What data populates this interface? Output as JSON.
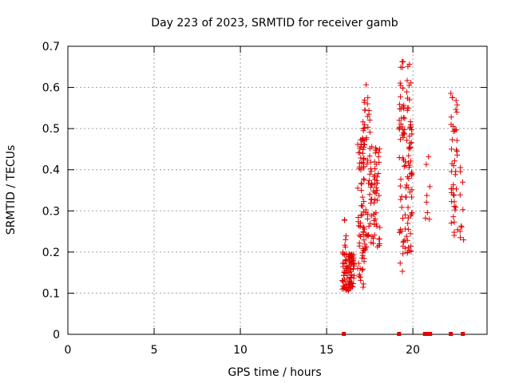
{
  "chart_data": {
    "type": "scatter",
    "title": "Day 223 of 2023, SRMTID for receiver gamb",
    "xlabel": "GPS time / hours",
    "ylabel": "SRMTID / TECUs",
    "xlim": [
      0,
      24.3
    ],
    "ylim": [
      0,
      0.7
    ],
    "xticks": [
      0,
      5,
      10,
      15,
      20
    ],
    "yticks": [
      0,
      0.1,
      0.2,
      0.3,
      0.4,
      0.5,
      0.6,
      0.7
    ],
    "xtick_labels": [
      "0",
      "5",
      "10",
      "15",
      "20"
    ],
    "ytick_labels": [
      "0",
      "0.1",
      "0.2",
      "0.3",
      "0.4",
      "0.5",
      "0.6",
      "0.7"
    ],
    "grid": true,
    "marker": "+",
    "color": "#e00000",
    "zero_points_x": [
      16.0,
      19.2,
      20.7,
      20.8,
      20.9,
      21.0,
      22.2,
      22.9
    ],
    "clusters": [
      {
        "x_range": [
          15.9,
          16.6
        ],
        "y_range": [
          0.105,
          0.2
        ],
        "count": 90
      },
      {
        "x_range": [
          16.0,
          16.2
        ],
        "y_range": [
          0.2,
          0.3
        ],
        "count": 6
      },
      {
        "x_range": [
          16.8,
          17.2
        ],
        "y_range": [
          0.11,
          0.48
        ],
        "count": 70
      },
      {
        "x_range": [
          17.1,
          17.6
        ],
        "y_range": [
          0.2,
          0.61
        ],
        "count": 60
      },
      {
        "x_range": [
          17.6,
          18.1
        ],
        "y_range": [
          0.21,
          0.46
        ],
        "count": 50
      },
      {
        "x_range": [
          19.2,
          19.6
        ],
        "y_range": [
          0.15,
          0.665
        ],
        "count": 60
      },
      {
        "x_range": [
          19.6,
          19.95
        ],
        "y_range": [
          0.19,
          0.665
        ],
        "count": 60
      },
      {
        "x_range": [
          20.7,
          21.0
        ],
        "y_range": [
          0.25,
          0.45
        ],
        "count": 8
      },
      {
        "x_range": [
          22.2,
          22.6
        ],
        "y_range": [
          0.23,
          0.59
        ],
        "count": 45
      },
      {
        "x_range": [
          22.7,
          22.95
        ],
        "y_range": [
          0.2,
          0.41
        ],
        "count": 10
      }
    ]
  }
}
